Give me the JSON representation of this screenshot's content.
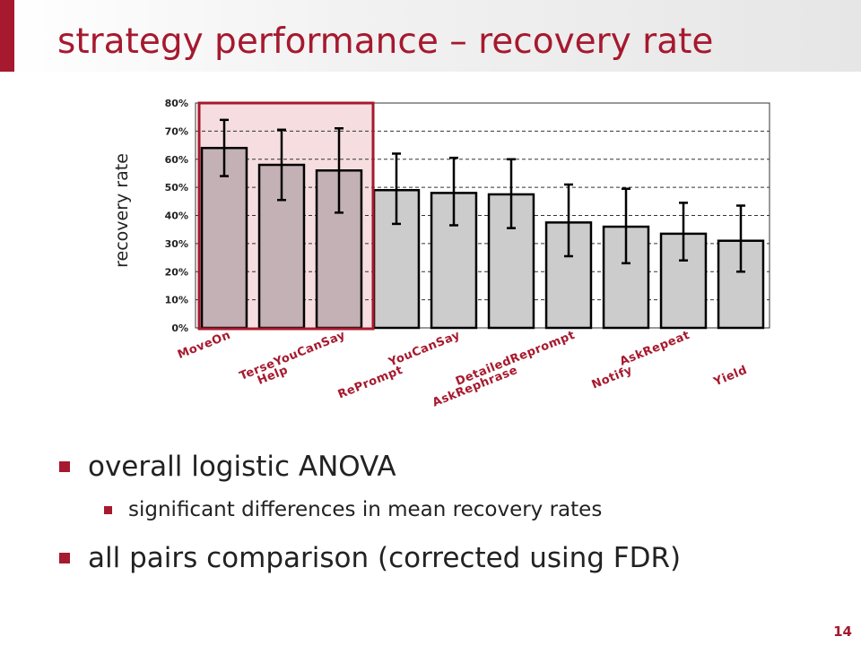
{
  "slide": {
    "title": "strategy performance – recovery rate",
    "page_number": "14",
    "bullets": [
      {
        "level": 1,
        "text": "overall logistic ANOVA"
      },
      {
        "level": 2,
        "text": "significant differences in mean recovery rates"
      },
      {
        "level": 1,
        "text": "all pairs comparison (corrected using FDR)"
      }
    ]
  },
  "colors": {
    "accent": "#a6192e",
    "bar_highlight": "#c4b1b5",
    "bar_default": "#cccccc",
    "highlight_box_fill": "#f6dde0"
  },
  "chart_data": {
    "type": "bar",
    "categories": [
      "MoveOn",
      "Help",
      "TerseYouCanSay",
      "RePrompt",
      "YouCanSay",
      "AskRephrase",
      "DetailedReprompt",
      "Notify",
      "AskRepeat",
      "Yield"
    ],
    "values": [
      64,
      58,
      56,
      49,
      48,
      47.5,
      37.5,
      36,
      33.5,
      31
    ],
    "error_low": [
      54,
      45.5,
      41,
      37,
      36.5,
      35.5,
      25.5,
      23,
      24,
      20
    ],
    "error_high": [
      74,
      70.5,
      71,
      62,
      60.5,
      60,
      51,
      49.5,
      44.5,
      43.5
    ],
    "highlighted_categories": [
      "MoveOn",
      "Help",
      "TerseYouCanSay"
    ],
    "ylabel": "recovery rate",
    "ylim": [
      0,
      80
    ],
    "yticks": [
      "0%",
      "10%",
      "20%",
      "30%",
      "40%",
      "50%",
      "60%",
      "70%",
      "80%"
    ],
    "grid": "horizontal dashed"
  }
}
